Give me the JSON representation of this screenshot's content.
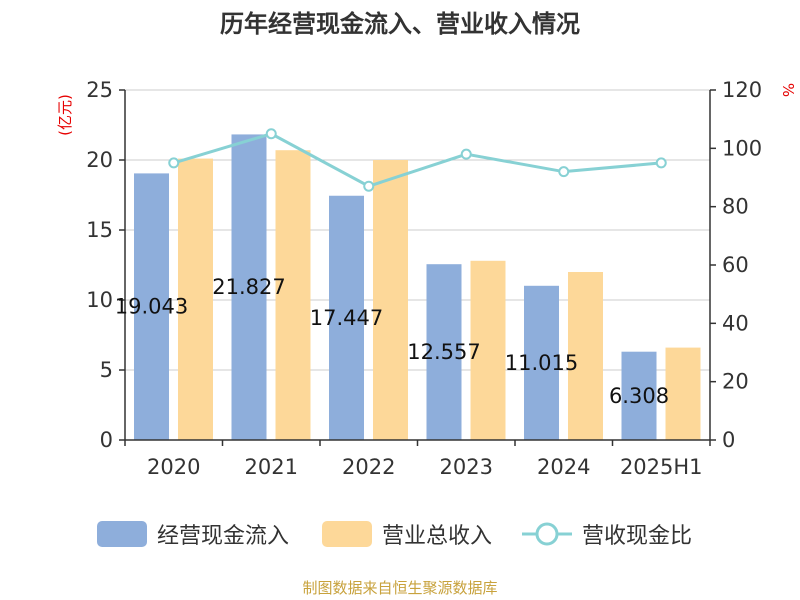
{
  "chart_data": {
    "type": "bar",
    "title": "历年经营现金流入、营业收入情况",
    "categories": [
      "2020",
      "2021",
      "2022",
      "2023",
      "2024",
      "2025H1"
    ],
    "y_left": {
      "unit_label": "(亿元)",
      "ylim": [
        0,
        25
      ],
      "ticks": [
        0,
        5,
        10,
        15,
        20,
        25
      ]
    },
    "y_right": {
      "unit_label": "%",
      "ylim": [
        0,
        120
      ],
      "ticks": [
        0,
        20,
        40,
        60,
        80,
        100,
        120
      ]
    },
    "series": [
      {
        "name": "经营现金流入",
        "type": "bar",
        "axis": "left",
        "color": "#8eaedb",
        "values": [
          19.043,
          21.827,
          17.447,
          12.557,
          11.015,
          6.308
        ],
        "labels": [
          "19.043",
          "21.827",
          "17.447",
          "12.557",
          "11.015",
          "6.308"
        ]
      },
      {
        "name": "营业总收入",
        "type": "bar",
        "axis": "left",
        "color": "#fdd899",
        "values": [
          20.1,
          20.7,
          20.0,
          12.8,
          12.0,
          6.6
        ]
      },
      {
        "name": "营收现金比",
        "type": "line",
        "axis": "right",
        "color": "#87d1d4",
        "values": [
          95,
          105,
          87,
          98,
          92,
          95
        ]
      }
    ],
    "grid": true,
    "legend": "bottom",
    "source": "制图数据来自恒生聚源数据库"
  }
}
